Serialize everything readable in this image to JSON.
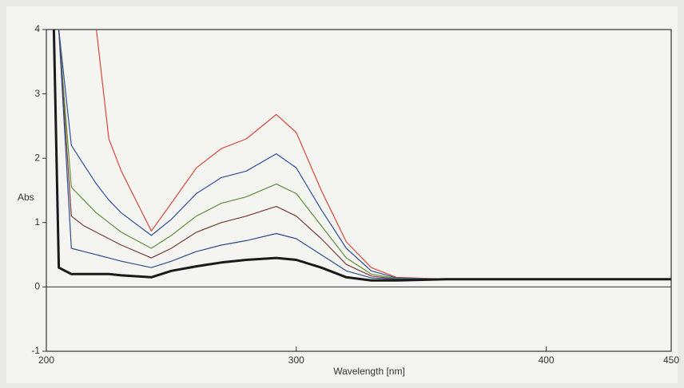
{
  "chart_data": {
    "type": "line",
    "y_label": "Abs",
    "x_label": "Wavelength [nm]",
    "x": [
      203,
      205,
      210,
      215,
      220,
      225,
      230,
      242,
      250,
      260,
      270,
      280,
      292,
      300,
      310,
      320,
      330,
      340,
      360,
      400,
      450
    ],
    "series": [
      {
        "color": "#d9473a",
        "values": [
          null,
          null,
          null,
          null,
          4,
          2.3,
          1.8,
          0.87,
          1.3,
          1.85,
          2.15,
          2.3,
          2.68,
          2.4,
          1.5,
          0.7,
          0.3,
          0.15,
          0.12,
          0.12,
          0.12
        ]
      },
      {
        "color": "#2f4f9a",
        "values": [
          null,
          4,
          2.2,
          1.9,
          1.6,
          1.35,
          1.15,
          0.8,
          1.05,
          1.45,
          1.7,
          1.8,
          2.07,
          1.85,
          1.2,
          0.6,
          0.25,
          0.14,
          0.12,
          0.12,
          0.12
        ]
      },
      {
        "color": "#5f8f3a",
        "values": [
          null,
          4,
          1.55,
          1.35,
          1.15,
          1.0,
          0.85,
          0.6,
          0.8,
          1.1,
          1.3,
          1.4,
          1.6,
          1.45,
          0.95,
          0.45,
          0.2,
          0.13,
          0.12,
          0.12,
          0.12
        ]
      },
      {
        "color": "#7a3a35",
        "values": [
          null,
          4,
          1.1,
          0.95,
          0.85,
          0.75,
          0.65,
          0.45,
          0.6,
          0.85,
          1.0,
          1.1,
          1.25,
          1.1,
          0.75,
          0.35,
          0.17,
          0.12,
          0.12,
          0.12,
          0.12
        ]
      },
      {
        "color": "#2e4d8a",
        "values": [
          null,
          4,
          0.6,
          0.55,
          0.5,
          0.45,
          0.4,
          0.3,
          0.4,
          0.55,
          0.65,
          0.72,
          0.83,
          0.75,
          0.5,
          0.25,
          0.14,
          0.12,
          0.12,
          0.12,
          0.12
        ]
      },
      {
        "color": "#1a1a1a",
        "width": 3,
        "values": [
          4,
          0.3,
          0.2,
          0.2,
          0.2,
          0.2,
          0.18,
          0.15,
          0.25,
          0.32,
          0.38,
          0.42,
          0.45,
          0.42,
          0.3,
          0.15,
          0.1,
          0.1,
          0.12,
          0.12,
          0.12
        ]
      }
    ],
    "xlim": [
      200,
      450
    ],
    "xticks": [
      200,
      300,
      400,
      450
    ],
    "ylim": [
      -1,
      4
    ],
    "yticks": [
      -1,
      0,
      1,
      2,
      3,
      4
    ],
    "zero_line": true
  }
}
